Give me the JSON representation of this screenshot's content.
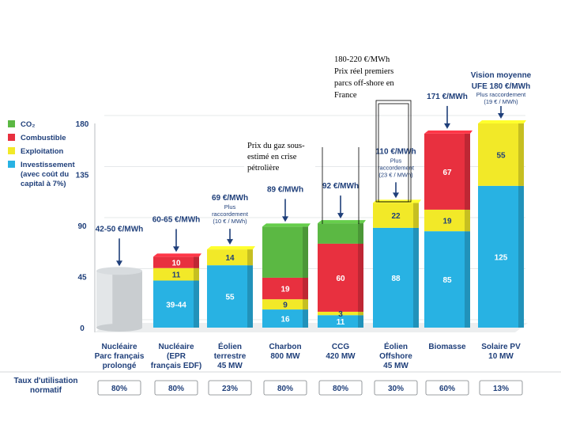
{
  "chart_data": {
    "type": "bar",
    "stacked": true,
    "ylim": [
      0,
      180
    ],
    "yticks": [
      0,
      45,
      90,
      135,
      180
    ],
    "legend": [
      {
        "name": "CO₂",
        "color": "#5bb843"
      },
      {
        "name": "Combustible",
        "color": "#e8303f"
      },
      {
        "name": "Exploitation",
        "color": "#f2e928"
      },
      {
        "name": "Investissement",
        "sub": "(avec coût du",
        "sub2": "capital à 7%)",
        "color": "#28b2e3"
      }
    ],
    "categories": [
      {
        "label": [
          "Nucléaire",
          "Parc français",
          "prolongé"
        ],
        "price": "42-50 €/MWh",
        "sub": [],
        "rate": "80%",
        "segments": [
          {
            "value": 50,
            "color": "#c8ccce",
            "label": ""
          }
        ]
      },
      {
        "label": [
          "Nucléaire",
          "(EPR",
          "français EDF)"
        ],
        "price": "60-65 €/MWh",
        "sub": [],
        "rate": "80%",
        "segments": [
          {
            "value": 41.5,
            "color": "#28b2e3",
            "label": "39-44"
          },
          {
            "value": 11,
            "color": "#f2e928",
            "label": "11"
          },
          {
            "value": 10,
            "color": "#e8303f",
            "label": "10"
          }
        ]
      },
      {
        "label": [
          "Éolien",
          "terrestre",
          "45 MW"
        ],
        "price": "69 €/MWh",
        "sub": [
          "Plus",
          "raccordement",
          "(10 € / MWh)"
        ],
        "rate": "23%",
        "segments": [
          {
            "value": 55,
            "color": "#28b2e3",
            "label": "55"
          },
          {
            "value": 14,
            "color": "#f2e928",
            "label": "14"
          }
        ]
      },
      {
        "label": [
          "Charbon",
          "800 MW"
        ],
        "price": "89 €/MWh",
        "sub": [],
        "rate": "80%",
        "segments": [
          {
            "value": 16,
            "color": "#28b2e3",
            "label": "16"
          },
          {
            "value": 9,
            "color": "#f2e928",
            "label": "9"
          },
          {
            "value": 19,
            "color": "#e8303f",
            "label": "19"
          },
          {
            "value": 45,
            "color": "#5bb843",
            "label": ""
          }
        ]
      },
      {
        "label": [
          "CCG",
          "420 MW"
        ],
        "price": "92 €/MWh",
        "sub": [],
        "rate": "80%",
        "segments": [
          {
            "value": 11,
            "color": "#28b2e3",
            "label": "11"
          },
          {
            "value": 3,
            "color": "#f2e928",
            "label": "3"
          },
          {
            "value": 60,
            "color": "#e8303f",
            "label": "60"
          },
          {
            "value": 18,
            "color": "#5bb843",
            "label": ""
          }
        ]
      },
      {
        "label": [
          "Éolien",
          "Offshore",
          "45 MW"
        ],
        "price": "110 €/MWh",
        "sub": [
          "Plus",
          "raccordement",
          "(23 € / MWh)"
        ],
        "rate": "30%",
        "segments": [
          {
            "value": 88,
            "color": "#28b2e3",
            "label": "88"
          },
          {
            "value": 22,
            "color": "#f2e928",
            "label": "22"
          }
        ]
      },
      {
        "label": [
          "Biomasse"
        ],
        "price": "171 €/MWh",
        "sub": [],
        "rate": "60%",
        "segments": [
          {
            "value": 85,
            "color": "#28b2e3",
            "label": "85"
          },
          {
            "value": 19,
            "color": "#f2e928",
            "label": "19"
          },
          {
            "value": 67,
            "color": "#e8303f",
            "label": "67"
          }
        ]
      },
      {
        "label": [
          "Solaire PV",
          "10 MW"
        ],
        "price": "Vision moyenne",
        "price2": "UFE 180 €/MWh",
        "sub": [
          "Plus raccordement",
          "(19 € / MWh)"
        ],
        "rate": "13%",
        "segments": [
          {
            "value": 125,
            "color": "#28b2e3",
            "label": "125"
          },
          {
            "value": 55,
            "color": "#f2e928",
            "label": "55"
          }
        ]
      }
    ],
    "rate_label": [
      "Taux d'utilisation",
      "normatif"
    ],
    "annotations": {
      "gas": [
        "Prix du gaz sous-",
        "estimé en crise",
        "pétrolière"
      ],
      "offshore": [
        "180-220 €/MWh",
        "Prix réel premiers",
        "parcs off-shore en",
        "France"
      ]
    }
  }
}
